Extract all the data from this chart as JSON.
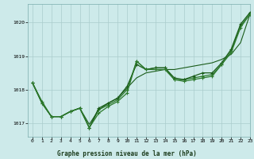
{
  "background_color": "#cdeaea",
  "grid_color": "#aacccc",
  "line_color_dark": "#1a5c1a",
  "line_color_mid": "#2d7a2d",
  "xlabel": "Graphe pression niveau de la mer (hPa)",
  "xlim": [
    -0.5,
    23
  ],
  "ylim": [
    1016.6,
    1020.55
  ],
  "yticks": [
    1017,
    1018,
    1019,
    1020
  ],
  "xticks": [
    0,
    1,
    2,
    3,
    4,
    5,
    6,
    7,
    8,
    9,
    10,
    11,
    12,
    13,
    14,
    15,
    16,
    17,
    18,
    19,
    20,
    21,
    22,
    23
  ],
  "series1": [
    1018.2,
    1017.65,
    1017.2,
    1017.2,
    1017.35,
    1017.45,
    1016.87,
    1017.4,
    1017.55,
    1017.7,
    1018.0,
    1018.85,
    1018.6,
    1018.65,
    1018.65,
    1018.3,
    1018.3,
    1018.35,
    1018.4,
    1018.45,
    1018.75,
    1019.15,
    1019.9,
    1020.25
  ],
  "series2": [
    1018.2,
    1017.6,
    1017.2,
    1017.2,
    1017.35,
    1017.45,
    1016.87,
    1017.45,
    1017.6,
    1017.75,
    1018.1,
    1018.75,
    1018.6,
    1018.65,
    1018.65,
    1018.35,
    1018.3,
    1018.4,
    1018.5,
    1018.5,
    1018.8,
    1019.2,
    1019.95,
    1020.3
  ],
  "series3": [
    1018.2,
    1017.6,
    1017.2,
    1017.2,
    1017.35,
    1017.45,
    1016.87,
    1017.3,
    1017.5,
    1017.65,
    1017.9,
    1018.85,
    1018.6,
    1018.6,
    1018.6,
    1018.3,
    1018.25,
    1018.3,
    1018.35,
    1018.4,
    1018.75,
    1019.1,
    1019.85,
    1020.25
  ],
  "series4_smooth": [
    1018.2,
    1017.6,
    1017.2,
    1017.2,
    1017.35,
    1017.45,
    1016.97,
    1017.4,
    1017.6,
    1017.75,
    1018.05,
    1018.35,
    1018.5,
    1018.55,
    1018.6,
    1018.6,
    1018.65,
    1018.7,
    1018.75,
    1018.8,
    1018.9,
    1019.05,
    1019.4,
    1020.25
  ]
}
